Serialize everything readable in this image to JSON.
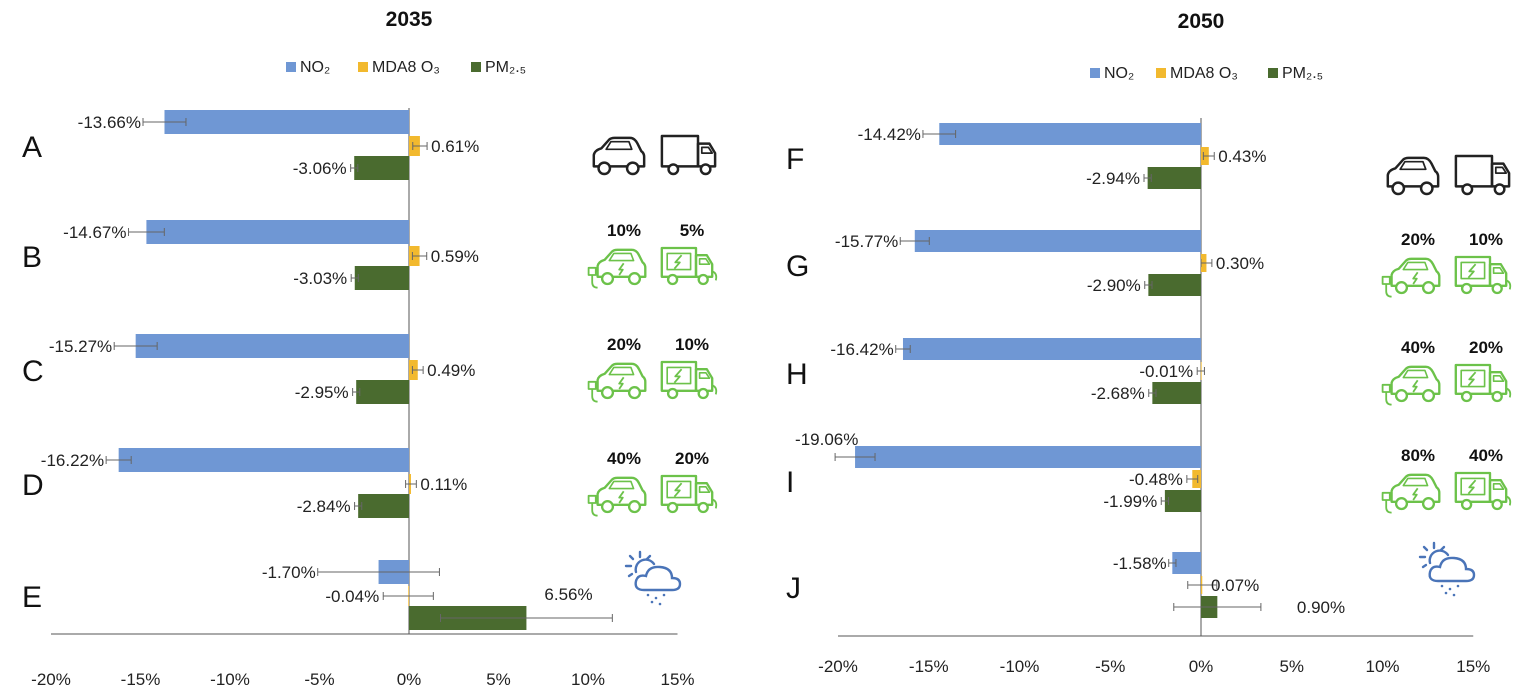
{
  "colors": {
    "no2": "#6f97d4",
    "o3": "#f2b92e",
    "pm25": "#4a6b2f",
    "ev": "#6cc24a",
    "ice": "#222222",
    "weather": "#4a74b8"
  },
  "legend": [
    {
      "key": "no2",
      "label": "NO₂"
    },
    {
      "key": "o3",
      "label": "MDA8 O₃"
    },
    {
      "key": "pm25",
      "label": "PM₂.₅"
    }
  ],
  "chart_data": [
    {
      "type": "bar",
      "orientation": "horizontal",
      "title": "2035",
      "xlim": [
        -20,
        15
      ],
      "ticks": [
        "-20%",
        "-15%",
        "-10%",
        "-5%",
        "0%",
        "5%",
        "10%",
        "15%"
      ],
      "tick_values": [
        -20,
        -15,
        -10,
        -5,
        0,
        5,
        10,
        15
      ],
      "legend_position": "top",
      "groups": [
        {
          "id": "A",
          "icon": "ice",
          "car_share": "",
          "truck_share": "",
          "bars": [
            {
              "series": "no2",
              "value": -13.66,
              "err": 1.2,
              "label": "-13.66%"
            },
            {
              "series": "o3",
              "value": 0.61,
              "err": 0.4,
              "label": "0.61%"
            },
            {
              "series": "pm25",
              "value": -3.06,
              "err": 0.2,
              "label": "-3.06%"
            }
          ]
        },
        {
          "id": "B",
          "icon": "ev",
          "car_share": "10%",
          "truck_share": "5%",
          "bars": [
            {
              "series": "no2",
              "value": -14.67,
              "err": 1.0,
              "label": "-14.67%"
            },
            {
              "series": "o3",
              "value": 0.59,
              "err": 0.4,
              "label": "0.59%"
            },
            {
              "series": "pm25",
              "value": -3.03,
              "err": 0.2,
              "label": "-3.03%"
            }
          ]
        },
        {
          "id": "C",
          "icon": "ev",
          "car_share": "20%",
          "truck_share": "10%",
          "bars": [
            {
              "series": "no2",
              "value": -15.27,
              "err": 1.2,
              "label": "-15.27%"
            },
            {
              "series": "o3",
              "value": 0.49,
              "err": 0.3,
              "label": "0.49%"
            },
            {
              "series": "pm25",
              "value": -2.95,
              "err": 0.2,
              "label": "-2.95%"
            }
          ]
        },
        {
          "id": "D",
          "icon": "ev",
          "car_share": "40%",
          "truck_share": "20%",
          "bars": [
            {
              "series": "no2",
              "value": -16.22,
              "err": 0.7,
              "label": "-16.22%"
            },
            {
              "series": "o3",
              "value": 0.11,
              "err": 0.3,
              "label": "0.11%"
            },
            {
              "series": "pm25",
              "value": -2.84,
              "err": 0.2,
              "label": "-2.84%"
            }
          ]
        },
        {
          "id": "E",
          "icon": "weather",
          "car_share": "",
          "truck_share": "",
          "bars": [
            {
              "series": "no2",
              "value": -1.7,
              "err": 3.4,
              "label": "-1.70%"
            },
            {
              "series": "o3",
              "value": -0.04,
              "err": 1.4,
              "label": "-0.04%"
            },
            {
              "series": "pm25",
              "value": 6.56,
              "err": 4.8,
              "label": "6.56%"
            }
          ]
        }
      ]
    },
    {
      "type": "bar",
      "orientation": "horizontal",
      "title": "2050",
      "xlim": [
        -20,
        15
      ],
      "ticks": [
        "-20%",
        "-15%",
        "-10%",
        "-5%",
        "0%",
        "5%",
        "10%",
        "15%"
      ],
      "tick_values": [
        -20,
        -15,
        -10,
        -5,
        0,
        5,
        10,
        15
      ],
      "legend_position": "top",
      "groups": [
        {
          "id": "F",
          "icon": "ice",
          "car_share": "",
          "truck_share": "",
          "bars": [
            {
              "series": "no2",
              "value": -14.42,
              "err": 0.9,
              "label": "-14.42%"
            },
            {
              "series": "o3",
              "value": 0.43,
              "err": 0.3,
              "label": "0.43%"
            },
            {
              "series": "pm25",
              "value": -2.94,
              "err": 0.2,
              "label": "-2.94%"
            }
          ]
        },
        {
          "id": "G",
          "icon": "ev",
          "car_share": "20%",
          "truck_share": "10%",
          "bars": [
            {
              "series": "no2",
              "value": -15.77,
              "err": 0.8,
              "label": "-15.77%"
            },
            {
              "series": "o3",
              "value": 0.3,
              "err": 0.3,
              "label": "0.30%"
            },
            {
              "series": "pm25",
              "value": -2.9,
              "err": 0.2,
              "label": "-2.90%"
            }
          ]
        },
        {
          "id": "H",
          "icon": "ev",
          "car_share": "40%",
          "truck_share": "20%",
          "bars": [
            {
              "series": "no2",
              "value": -16.42,
              "err": 0.4,
              "label": "-16.42%"
            },
            {
              "series": "o3",
              "value": -0.01,
              "err": 0.2,
              "label": "-0.01%"
            },
            {
              "series": "pm25",
              "value": -2.68,
              "err": 0.2,
              "label": "-2.68%"
            }
          ]
        },
        {
          "id": "I",
          "icon": "ev",
          "car_share": "80%",
          "truck_share": "40%",
          "bars": [
            {
              "series": "no2",
              "value": -19.06,
              "err": 1.1,
              "label": "-19.06%"
            },
            {
              "series": "o3",
              "value": -0.48,
              "err": 0.3,
              "label": "-0.48%"
            },
            {
              "series": "pm25",
              "value": -1.99,
              "err": 0.2,
              "label": "-1.99%"
            }
          ]
        },
        {
          "id": "J",
          "icon": "weather",
          "car_share": "",
          "truck_share": "",
          "bars": [
            {
              "series": "no2",
              "value": -1.58,
              "err": 0.2,
              "label": "-1.58%"
            },
            {
              "series": "o3",
              "value": 0.07,
              "err": 0.8,
              "label": "0.07%"
            },
            {
              "series": "pm25",
              "value": 0.9,
              "err": 2.4,
              "label": "0.90%"
            }
          ]
        }
      ]
    }
  ]
}
